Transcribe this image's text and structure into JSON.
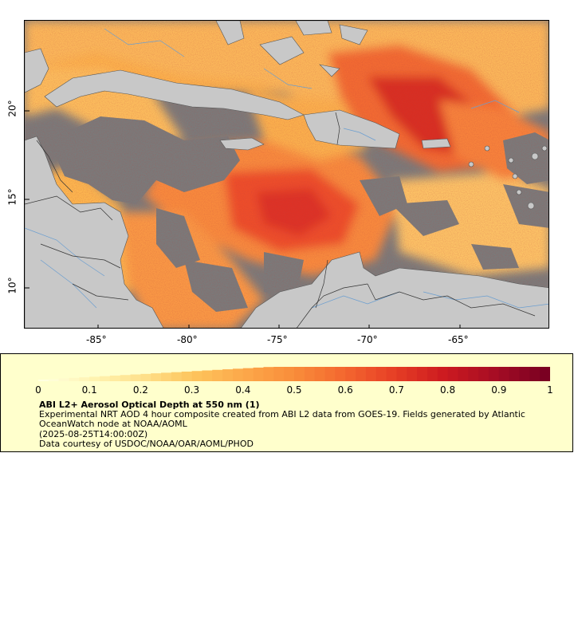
{
  "map": {
    "colors": {
      "no_data": "#7a7a7a",
      "land": "#c8c8c8",
      "border": "#333333",
      "river": "#6a9ed0"
    },
    "lat_ticks": [
      "20°",
      "15°",
      "10°"
    ],
    "lon_ticks": [
      "-85°",
      "-80°",
      "-75°",
      "-70°",
      "-65°"
    ]
  },
  "legend": {
    "colorbar_labels": [
      "0",
      "0.1",
      "0.2",
      "0.3",
      "0.4",
      "0.5",
      "0.6",
      "0.7",
      "0.8",
      "0.9",
      "1"
    ],
    "colorbar_stops": [
      "#ffffe0",
      "#fff3b0",
      "#fee08b",
      "#fdc45c",
      "#fca84a",
      "#f98d3a",
      "#f4672f",
      "#e63e25",
      "#cc1a20",
      "#a60d24",
      "#7a0022"
    ],
    "title": "ABI L2+ Aerosol Optical Depth at 550 nm (1)",
    "description": "Experimental NRT AOD 4 hour composite created from ABI L2 data from GOES-19. Fields generated by Atlantic OceanWatch node at NOAA/AOML",
    "timestamp": "(2025-08-25T14:00:00Z)",
    "credit": "Data courtesy of USDOC/NOAA/OAR/AOML/PHOD"
  }
}
